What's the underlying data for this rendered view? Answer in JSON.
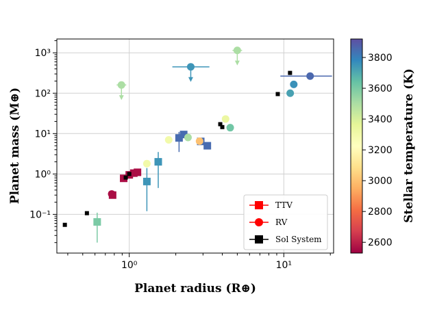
{
  "chart_data": {
    "type": "scatter",
    "xlabel": "Planet radius (R⊕)",
    "ylabel": "Planet mass (M⊕)",
    "xscale": "log",
    "yscale": "log",
    "xlim": [
      0.34,
      21
    ],
    "ylim": [
      0.011,
      2200
    ],
    "grid": true,
    "x_ticks": [
      {
        "value": 1,
        "label": "10⁰"
      },
      {
        "value": 10,
        "label": "10¹"
      }
    ],
    "y_ticks": [
      {
        "value": 0.1,
        "label": "10⁻¹"
      },
      {
        "value": 1,
        "label": "10⁰"
      },
      {
        "value": 10,
        "label": "10¹"
      },
      {
        "value": 100,
        "label": "10²"
      },
      {
        "value": 1000,
        "label": "10³"
      }
    ],
    "colorbar": {
      "label": "Stellar temperature (K)",
      "min": 2530,
      "max": 3920,
      "ticks": [
        2600,
        2800,
        3000,
        3200,
        3400,
        3600,
        3800
      ],
      "colors": [
        "#9e0142",
        "#d53e4f",
        "#f46d43",
        "#fdae61",
        "#fee08b",
        "#ffffbf",
        "#e6f598",
        "#abdda4",
        "#66c2a5",
        "#3288bd",
        "#5e4fa2"
      ]
    },
    "legend": {
      "position": "lower-right",
      "entries": [
        {
          "label": "TTV",
          "marker": "square",
          "color": "#ff0000"
        },
        {
          "label": "RV",
          "marker": "circle",
          "color": "#ff0000"
        },
        {
          "label": "Sol System",
          "marker": "square",
          "color": "#000000"
        }
      ]
    },
    "series": [
      {
        "name": "TTV",
        "marker": "square",
        "points": [
          {
            "x": 0.62,
            "y": 0.065,
            "temp": 3600,
            "yerr": [
              0.02,
              0.11
            ]
          },
          {
            "x": 0.78,
            "y": 0.3,
            "temp": 2560
          },
          {
            "x": 0.92,
            "y": 0.78,
            "temp": 2560
          },
          {
            "x": 1.0,
            "y": 0.95,
            "temp": 2560
          },
          {
            "x": 1.07,
            "y": 1.05,
            "temp": 2560
          },
          {
            "x": 1.13,
            "y": 1.1,
            "temp": 2560
          },
          {
            "x": 1.3,
            "y": 0.65,
            "temp": 3750,
            "yerr": [
              0.12,
              1.4
            ]
          },
          {
            "x": 1.54,
            "y": 2.0,
            "temp": 3750,
            "yerr": [
              0.45,
              3.5
            ]
          },
          {
            "x": 2.1,
            "y": 7.8,
            "temp": 3850,
            "yerr": [
              3.5,
              11
            ]
          },
          {
            "x": 2.25,
            "y": 9.5,
            "temp": 3850
          },
          {
            "x": 2.9,
            "y": 6.4,
            "temp": 3850
          },
          {
            "x": 3.2,
            "y": 5.0,
            "temp": 3850
          }
        ]
      },
      {
        "name": "RV",
        "marker": "circle",
        "points": [
          {
            "x": 0.77,
            "y": 0.32,
            "temp": 2560
          },
          {
            "x": 0.89,
            "y": 160,
            "temp": 3500,
            "upper_limit": true
          },
          {
            "x": 1.3,
            "y": 1.8,
            "temp": 3300
          },
          {
            "x": 1.8,
            "y": 7.0,
            "temp": 3300
          },
          {
            "x": 2.5,
            "y": 450,
            "temp": 3750,
            "upper_limit": true,
            "xerr": [
              1.9,
              3.3
            ]
          },
          {
            "x": 2.4,
            "y": 8.0,
            "temp": 3500
          },
          {
            "x": 2.85,
            "y": 6.5,
            "temp": 3000
          },
          {
            "x": 4.2,
            "y": 23,
            "temp": 3330
          },
          {
            "x": 4.5,
            "y": 14,
            "temp": 3620
          },
          {
            "x": 5.0,
            "y": 1150,
            "temp": 3500,
            "upper_limit": true
          },
          {
            "x": 11.0,
            "y": 100,
            "temp": 3720
          },
          {
            "x": 11.6,
            "y": 165,
            "temp": 3760
          },
          {
            "x": 14.8,
            "y": 265,
            "temp": 3860,
            "xerr": [
              9.5,
              20.5
            ]
          }
        ]
      },
      {
        "name": "Sol System",
        "marker": "square",
        "points": [
          {
            "x": 0.383,
            "y": 0.055
          },
          {
            "x": 0.532,
            "y": 0.107
          },
          {
            "x": 0.949,
            "y": 0.815
          },
          {
            "x": 1.0,
            "y": 1.0
          },
          {
            "x": 3.88,
            "y": 17.1
          },
          {
            "x": 4.0,
            "y": 14.5
          },
          {
            "x": 9.14,
            "y": 95.2
          },
          {
            "x": 10.97,
            "y": 318
          }
        ]
      }
    ]
  }
}
